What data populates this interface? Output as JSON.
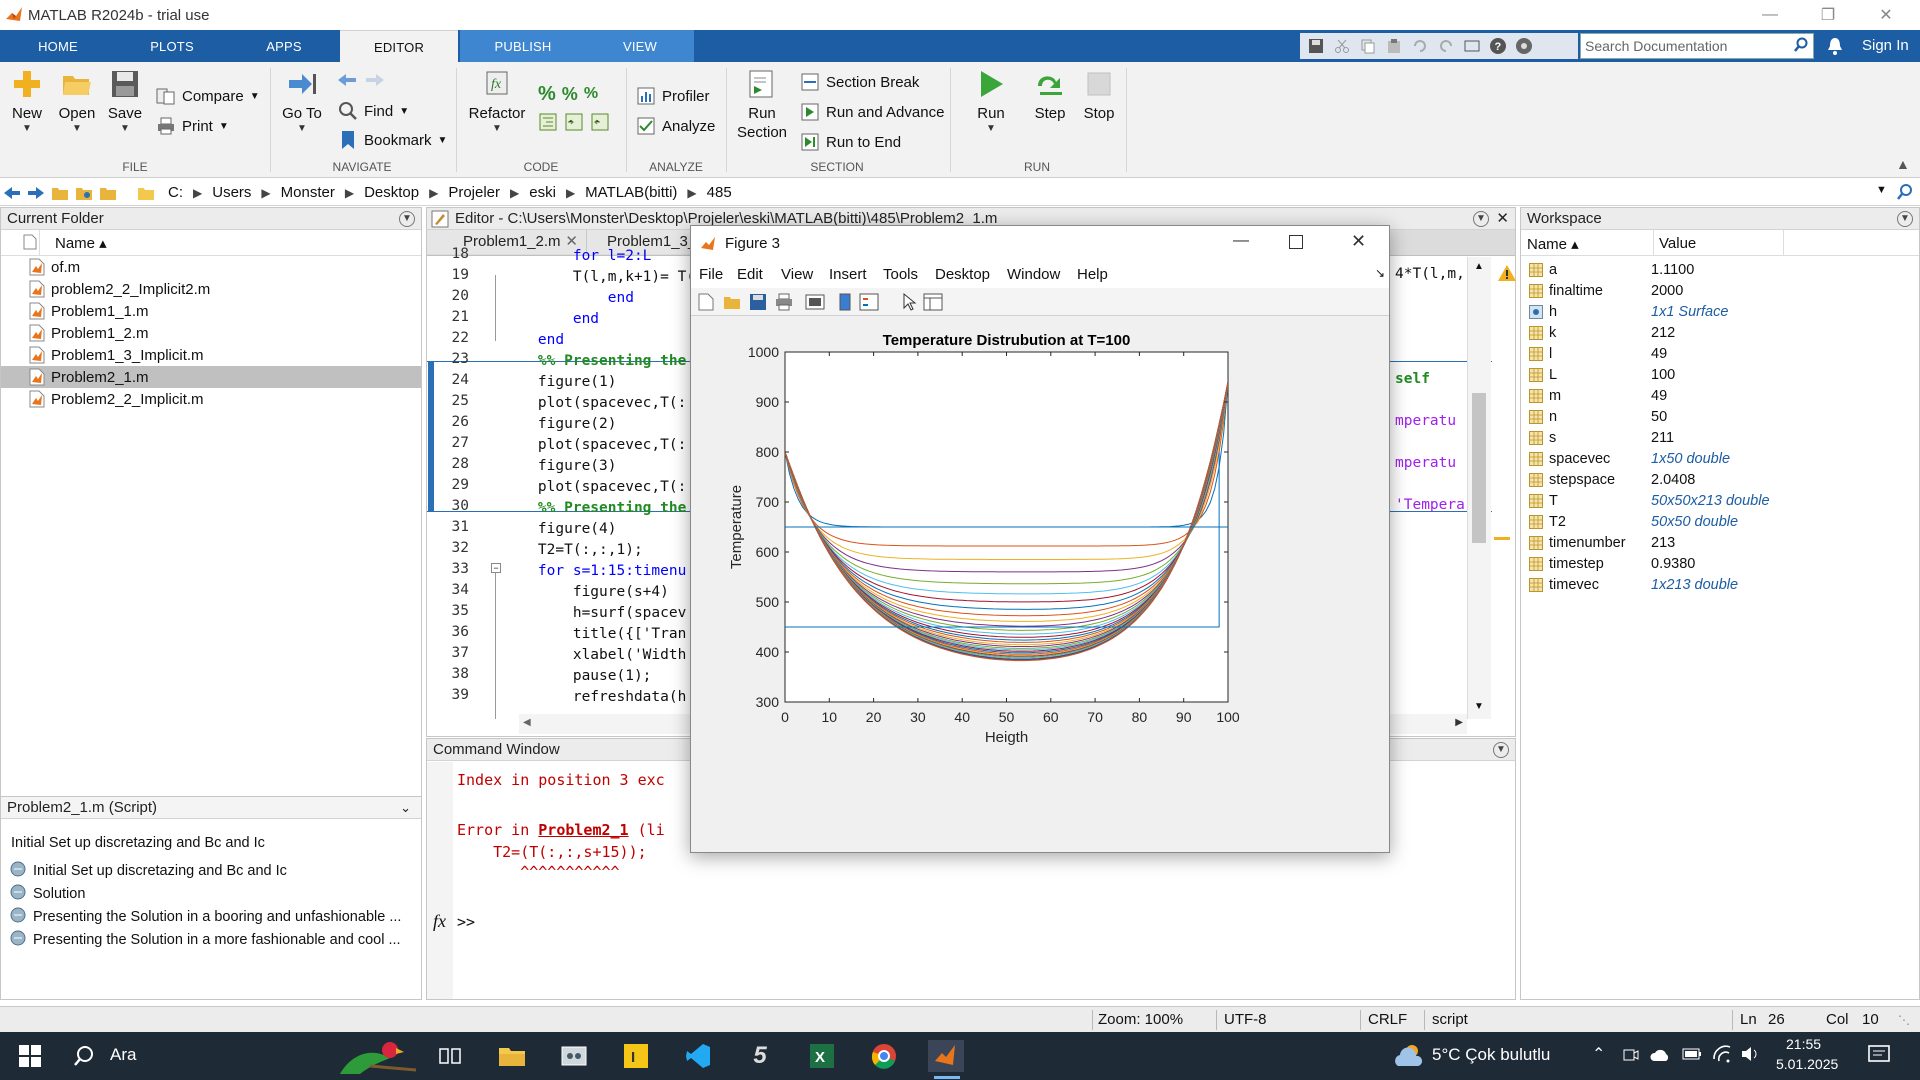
{
  "window": {
    "title": "MATLAB R2024b - trial use"
  },
  "ribbon_tabs": [
    "HOME",
    "PLOTS",
    "APPS",
    "EDITOR",
    "PUBLISH",
    "VIEW"
  ],
  "search": {
    "placeholder": "Search Documentation"
  },
  "signin": "Sign In",
  "ribbon": {
    "file": {
      "new": "New",
      "open": "Open",
      "save": "Save",
      "compare": "Compare",
      "print": "Print",
      "label": "FILE"
    },
    "navigate": {
      "goto_1": "Go To",
      "find": "Find",
      "bookmark": "Bookmark",
      "label": "NAVIGATE"
    },
    "code": {
      "refactor": "Refactor",
      "label": "CODE"
    },
    "analyze": {
      "profiler": "Profiler",
      "analyze": "Analyze",
      "label": "ANALYZE"
    },
    "section": {
      "run_section_1": "Run",
      "run_section_2": "Section",
      "section_break": "Section Break",
      "run_and_advance": "Run and Advance",
      "run_to_end": "Run to End",
      "label": "SECTION"
    },
    "run": {
      "run": "Run",
      "step": "Step",
      "stop": "Stop",
      "label": "RUN"
    }
  },
  "address": {
    "crumbs": [
      "C:",
      "Users",
      "Monster",
      "Desktop",
      "Projeler",
      "eski",
      "MATLAB(bitti)",
      "485"
    ]
  },
  "current_folder": {
    "title": "Current Folder",
    "col_name": "Name ▴",
    "files": [
      "of.m",
      "problem2_2_Implicit2.m",
      "Problem1_1.m",
      "Problem1_2.m",
      "Problem1_3_Implicit.m",
      "Problem2_1.m",
      "Problem2_2_Implicit.m"
    ],
    "selected_index": 5
  },
  "details": {
    "header": "Problem2_1.m  (Script)",
    "description": "Initial Set up discretazing and Bc and Ic",
    "sections": [
      "Initial Set up discretazing and Bc and Ic",
      "Solution",
      "Presenting the Solution in a booring and unfashionable ...",
      "Presenting the Solution in a more fashionable and cool ..."
    ]
  },
  "editor": {
    "title": "Editor - C:\\Users\\Monster\\Desktop\\Projeler\\eski\\MATLAB(bitti)\\485\\Problem2_1.m",
    "tabs": [
      "Problem1_2.m",
      "Problem1_3_"
    ],
    "lines": [
      {
        "n": "18",
        "code": "        for l=2:L"
      },
      {
        "n": "19",
        "code": "        T(l,m,k+1)= T(l,m"
      },
      {
        "n": "20",
        "code": "            end"
      },
      {
        "n": "21",
        "code": "        end"
      },
      {
        "n": "22",
        "code": "    end"
      },
      {
        "n": "23",
        "code": "    %% Presenting the"
      },
      {
        "n": "24",
        "code": "    figure(1)"
      },
      {
        "n": "25",
        "code": "    plot(spacevec,T(:"
      },
      {
        "n": "26",
        "code": "    figure(2)"
      },
      {
        "n": "27",
        "code": "    plot(spacevec,T(:"
      },
      {
        "n": "28",
        "code": "    figure(3)"
      },
      {
        "n": "29",
        "code": "    plot(spacevec,T(:"
      },
      {
        "n": "30",
        "code": "    %% Presenting the"
      },
      {
        "n": "31",
        "code": "    figure(4)"
      },
      {
        "n": "32",
        "code": "    T2=T(:,:,1);"
      },
      {
        "n": "33",
        "code": "    for s=1:15:timenu"
      },
      {
        "n": "34",
        "code": "        figure(s+4)"
      },
      {
        "n": "35",
        "code": "        h=surf(spacev"
      },
      {
        "n": "36",
        "code": "        title({['Tran"
      },
      {
        "n": "37",
        "code": "        xlabel('Width"
      },
      {
        "n": "38",
        "code": "        pause(1);"
      },
      {
        "n": "39",
        "code": "        refreshdata(h"
      }
    ],
    "right_fragments": [
      "4*T(l,m,",
      "self",
      "mperatu",
      "mperatu",
      "'Tempera"
    ]
  },
  "command_window": {
    "title": "Command Window",
    "error1": "Index in position 3 exc",
    "error2_prefix": "Error in ",
    "error2_link": "Problem2_1",
    "error2_suffix": " (li",
    "error3": "    T2=(T(:,:,s+15));",
    "error4": "       ^^^^^^^^^^^",
    "prompt": ">>"
  },
  "workspace": {
    "title": "Workspace",
    "col_name": "Name ▴",
    "col_value": "Value",
    "vars": [
      {
        "name": "a",
        "value": "1.1100",
        "italic": false
      },
      {
        "name": "finaltime",
        "value": "2000",
        "italic": false
      },
      {
        "name": "h",
        "value": "1x1 Surface",
        "italic": true
      },
      {
        "name": "k",
        "value": "212",
        "italic": false
      },
      {
        "name": "l",
        "value": "49",
        "italic": false
      },
      {
        "name": "L",
        "value": "100",
        "italic": false
      },
      {
        "name": "m",
        "value": "49",
        "italic": false
      },
      {
        "name": "n",
        "value": "50",
        "italic": false
      },
      {
        "name": "s",
        "value": "211",
        "italic": false
      },
      {
        "name": "spacevec",
        "value": "1x50 double",
        "italic": true
      },
      {
        "name": "stepspace",
        "value": "2.0408",
        "italic": false
      },
      {
        "name": "T",
        "value": "50x50x213 double",
        "italic": true
      },
      {
        "name": "T2",
        "value": "50x50 double",
        "italic": true
      },
      {
        "name": "timenumber",
        "value": "213",
        "italic": false
      },
      {
        "name": "timestep",
        "value": "0.9380",
        "italic": false
      },
      {
        "name": "timevec",
        "value": "1x213 double",
        "italic": true
      }
    ]
  },
  "figure": {
    "title": "Figure 3",
    "menu": [
      "File",
      "Edit",
      "View",
      "Insert",
      "Tools",
      "Desktop",
      "Window",
      "Help"
    ]
  },
  "chart_data": {
    "type": "line",
    "title": "Temperature Distrubution at T=100",
    "xlabel": "Heigth",
    "ylabel": "Temperature",
    "xlim": [
      0,
      100
    ],
    "ylim": [
      300,
      1000
    ],
    "xticks": [
      "0",
      "10",
      "20",
      "30",
      "40",
      "50",
      "60",
      "70",
      "80",
      "90",
      "100"
    ],
    "yticks": [
      "300",
      "400",
      "500",
      "600",
      "700",
      "800",
      "900",
      "1000"
    ],
    "series_count": 30,
    "series_min_at_center": [
      650,
      612,
      585,
      560,
      536,
      515,
      498,
      482,
      468,
      455,
      444,
      434,
      425,
      417,
      410,
      404,
      398,
      393,
      388,
      384,
      380,
      376,
      372,
      369,
      366,
      363,
      360,
      357,
      355,
      353
    ],
    "left_boundary": 800,
    "right_boundary": 940,
    "initial_condition": {
      "left_level": 450,
      "mid_level": 650
    },
    "colors": [
      "#0072bd",
      "#d95319",
      "#edb120",
      "#7e2f8e",
      "#77ac30",
      "#4dbeee",
      "#a2142f"
    ]
  },
  "statusbar": {
    "zoom": "Zoom: 100%",
    "encoding": "UTF-8",
    "eol": "CRLF",
    "type": "script",
    "ln_label": "Ln",
    "ln": "26",
    "col_label": "Col",
    "col": "10"
  },
  "taskbar": {
    "search": "Ara",
    "weather": "5°C  Çok bulutlu",
    "time": "21:55",
    "date": "5.01.2025"
  }
}
